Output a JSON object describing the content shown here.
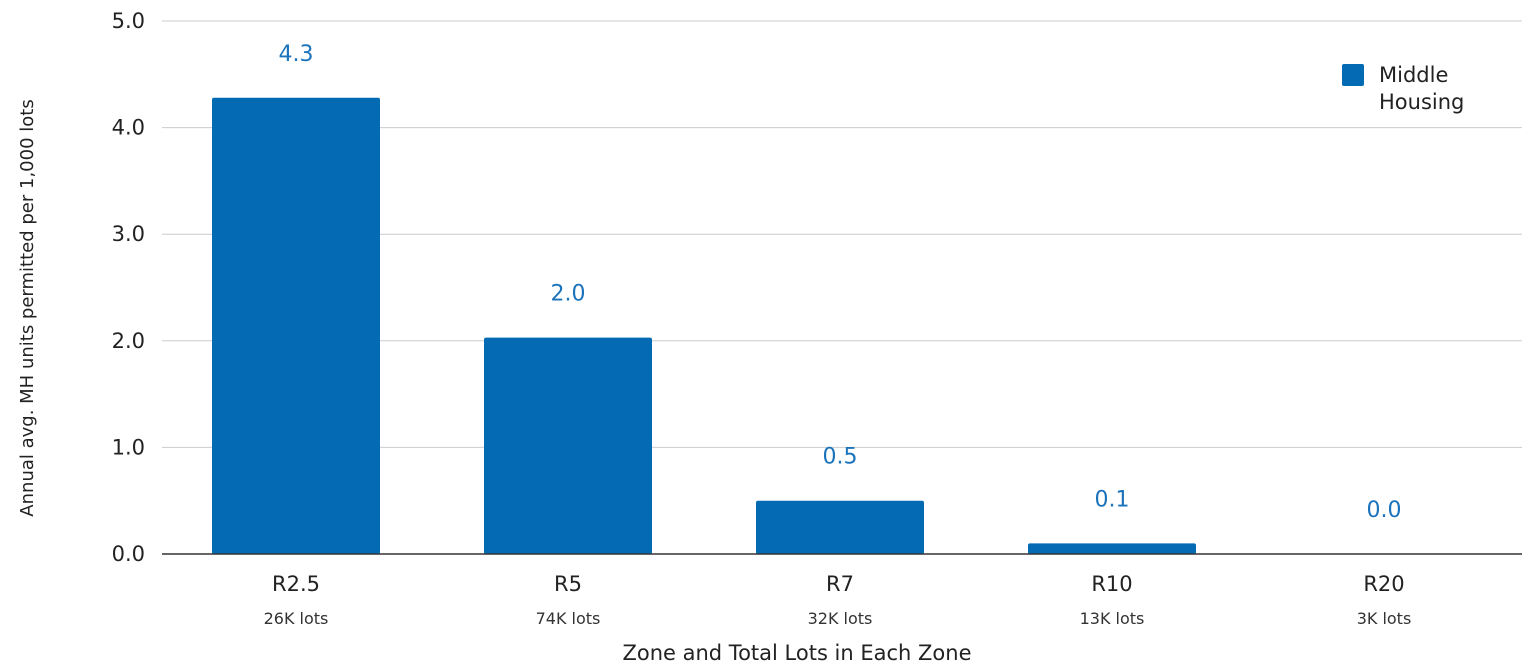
{
  "chart_data": {
    "type": "bar",
    "categories": [
      "R2.5",
      "R5",
      "R7",
      "R10",
      "R20"
    ],
    "category_sublabels": [
      "26K lots",
      "74K lots",
      "32K lots",
      "13K lots",
      "3K lots"
    ],
    "series": [
      {
        "name": "Middle Housing",
        "values": [
          4.28,
          2.03,
          0.5,
          0.1,
          0.0
        ],
        "color": "#036ab3"
      }
    ],
    "data_labels": [
      "4.3",
      "2.0",
      "0.5",
      "0.1",
      "0.0"
    ],
    "data_label_color": "#1a73bb",
    "xlabel": "Zone and Total Lots in Each Zone",
    "ylabel": "Annual avg. MH units permitted per 1,000 lots",
    "ylim": [
      0,
      5
    ],
    "yticks": [
      "0.0",
      "1.0",
      "2.0",
      "3.0",
      "4.0",
      "5.0"
    ],
    "grid": true,
    "legend": {
      "position": "top-right",
      "entries": [
        "Middle",
        "Housing"
      ]
    }
  }
}
